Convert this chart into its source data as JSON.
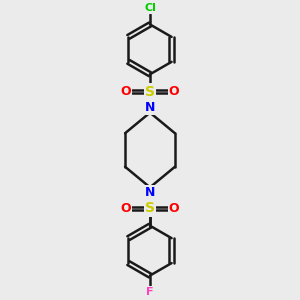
{
  "bg_color": "#ebebeb",
  "bond_color": "#1a1a1a",
  "N_color": "#0000ff",
  "O_color": "#ff0000",
  "S_color": "#cccc00",
  "Cl_color": "#00cc00",
  "F_color": "#ff44bb",
  "line_width": 1.8,
  "figsize": [
    3.0,
    3.0
  ],
  "dpi": 100,
  "xlim": [
    -1.1,
    1.1
  ],
  "ylim": [
    -3.0,
    3.0
  ]
}
